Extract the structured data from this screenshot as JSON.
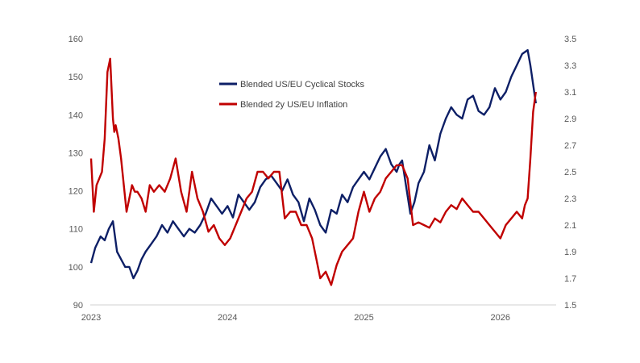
{
  "chart_data": {
    "type": "line",
    "title": "",
    "xlabel": "",
    "x_ticks": [
      "2023",
      "2024",
      "2025",
      "2026"
    ],
    "xlim": [
      2023.0,
      2026.35
    ],
    "grid": false,
    "legend_position": "top-center",
    "y_left": {
      "ticks": [
        "90",
        "100",
        "110",
        "120",
        "130",
        "140",
        "150",
        "160"
      ],
      "lim": [
        90,
        160
      ]
    },
    "y_right": {
      "ticks": [
        "1.5",
        "1.7",
        "1.9",
        "2.1",
        "2.3",
        "2.5",
        "2.7",
        "2.9",
        "3.1",
        "3.3",
        "3.5"
      ],
      "lim": [
        1.5,
        3.5
      ]
    },
    "series": [
      {
        "name": "Blended US/EU Cyclical Stocks",
        "axis": "left",
        "color": "#0d1f66",
        "x": [
          2023.0,
          2023.03,
          2023.07,
          2023.1,
          2023.13,
          2023.16,
          2023.19,
          2023.22,
          2023.25,
          2023.28,
          2023.31,
          2023.34,
          2023.37,
          2023.4,
          2023.44,
          2023.48,
          2023.52,
          2023.56,
          2023.6,
          2023.64,
          2023.68,
          2023.72,
          2023.76,
          2023.8,
          2023.84,
          2023.88,
          2023.92,
          2023.96,
          2024.0,
          2024.04,
          2024.08,
          2024.12,
          2024.16,
          2024.2,
          2024.24,
          2024.28,
          2024.32,
          2024.36,
          2024.4,
          2024.44,
          2024.48,
          2024.52,
          2024.56,
          2024.6,
          2024.64,
          2024.68,
          2024.72,
          2024.76,
          2024.8,
          2024.84,
          2024.88,
          2024.92,
          2024.96,
          2025.0,
          2025.04,
          2025.08,
          2025.12,
          2025.16,
          2025.2,
          2025.24,
          2025.26,
          2025.28,
          2025.31,
          2025.34,
          2025.37,
          2025.4,
          2025.44,
          2025.48,
          2025.52,
          2025.56,
          2025.6,
          2025.64,
          2025.68,
          2025.72,
          2025.76,
          2025.8,
          2025.84,
          2025.88,
          2025.92,
          2025.96,
          2026.0,
          2026.04,
          2026.08,
          2026.12,
          2026.16,
          2026.2,
          2026.22,
          2026.24,
          2026.26
        ],
        "values": [
          101,
          105,
          108,
          107,
          110,
          112,
          104,
          102,
          100,
          100,
          97,
          99,
          102,
          104,
          106,
          108,
          111,
          109,
          112,
          110,
          108,
          110,
          109,
          111,
          114,
          118,
          116,
          114,
          116,
          113,
          119,
          117,
          115,
          117,
          121,
          123,
          124,
          122,
          120,
          123,
          119,
          117,
          112,
          118,
          115,
          111,
          109,
          115,
          114,
          119,
          117,
          121,
          123,
          125,
          123,
          126,
          129,
          131,
          127,
          125,
          127,
          128,
          121,
          114,
          117,
          122,
          125,
          132,
          128,
          135,
          139,
          142,
          140,
          139,
          144,
          145,
          141,
          140,
          142,
          147,
          144,
          146,
          150,
          153,
          156,
          157,
          153,
          148,
          143
        ]
      },
      {
        "name": "Blended 2y US/EU Inflation",
        "axis": "right",
        "color": "#c00000",
        "x": [
          2023.0,
          2023.02,
          2023.04,
          2023.06,
          2023.08,
          2023.1,
          2023.12,
          2023.14,
          2023.16,
          2023.17,
          2023.18,
          2023.2,
          2023.22,
          2023.24,
          2023.26,
          2023.28,
          2023.3,
          2023.32,
          2023.34,
          2023.37,
          2023.4,
          2023.43,
          2023.46,
          2023.5,
          2023.54,
          2023.58,
          2023.62,
          2023.66,
          2023.7,
          2023.74,
          2023.78,
          2023.82,
          2023.86,
          2023.9,
          2023.94,
          2023.98,
          2024.02,
          2024.06,
          2024.1,
          2024.14,
          2024.18,
          2024.22,
          2024.26,
          2024.3,
          2024.34,
          2024.38,
          2024.42,
          2024.46,
          2024.5,
          2024.54,
          2024.58,
          2024.62,
          2024.65,
          2024.68,
          2024.72,
          2024.76,
          2024.8,
          2024.84,
          2024.88,
          2024.92,
          2024.96,
          2025.0,
          2025.04,
          2025.08,
          2025.12,
          2025.16,
          2025.2,
          2025.24,
          2025.28,
          2025.32,
          2025.36,
          2025.4,
          2025.44,
          2025.48,
          2025.52,
          2025.56,
          2025.6,
          2025.64,
          2025.68,
          2025.72,
          2025.76,
          2025.8,
          2025.84,
          2025.88,
          2025.92,
          2025.96,
          2026.0,
          2026.04,
          2026.08,
          2026.12,
          2026.16,
          2026.18,
          2026.2,
          2026.22,
          2026.24,
          2026.26
        ],
        "values": [
          2.6,
          2.2,
          2.4,
          2.45,
          2.5,
          2.75,
          3.25,
          3.35,
          2.9,
          2.8,
          2.85,
          2.75,
          2.6,
          2.4,
          2.2,
          2.3,
          2.4,
          2.35,
          2.35,
          2.3,
          2.2,
          2.4,
          2.35,
          2.4,
          2.35,
          2.45,
          2.6,
          2.35,
          2.2,
          2.5,
          2.3,
          2.2,
          2.05,
          2.1,
          2.0,
          1.95,
          2.0,
          2.1,
          2.2,
          2.3,
          2.35,
          2.5,
          2.5,
          2.45,
          2.5,
          2.5,
          2.15,
          2.2,
          2.2,
          2.1,
          2.1,
          2.0,
          1.85,
          1.7,
          1.75,
          1.65,
          1.8,
          1.9,
          1.95,
          2.0,
          2.2,
          2.35,
          2.2,
          2.3,
          2.35,
          2.45,
          2.5,
          2.55,
          2.55,
          2.45,
          2.1,
          2.12,
          2.1,
          2.08,
          2.15,
          2.12,
          2.2,
          2.25,
          2.22,
          2.3,
          2.25,
          2.2,
          2.2,
          2.15,
          2.1,
          2.05,
          2.0,
          2.1,
          2.15,
          2.2,
          2.15,
          2.25,
          2.3,
          2.6,
          2.95,
          3.1
        ]
      }
    ]
  }
}
